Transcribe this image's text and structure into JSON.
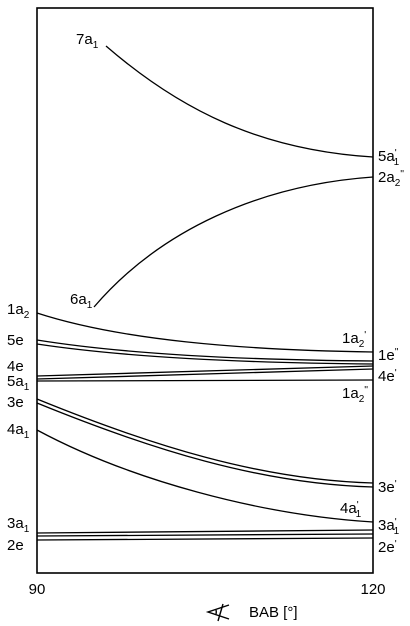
{
  "x_axis": {
    "tick_labels": [
      "90",
      "120"
    ],
    "label": "BAB [°]"
  },
  "left_labels": [
    {
      "id": "7a1",
      "main": "7a",
      "sub": "1",
      "sup": ""
    },
    {
      "id": "6a1",
      "main": "6a",
      "sub": "1",
      "sup": ""
    },
    {
      "id": "1a2",
      "main": "1a",
      "sub": "2",
      "sup": ""
    },
    {
      "id": "5e",
      "main": "5e",
      "sub": "",
      "sup": ""
    },
    {
      "id": "4e",
      "main": "4e",
      "sub": "",
      "sup": ""
    },
    {
      "id": "5a1",
      "main": "5a",
      "sub": "1",
      "sup": ""
    },
    {
      "id": "3e",
      "main": "3e",
      "sub": "",
      "sup": ""
    },
    {
      "id": "4a1",
      "main": "4a",
      "sub": "1",
      "sup": ""
    },
    {
      "id": "3a1",
      "main": "3a",
      "sub": "1",
      "sup": ""
    },
    {
      "id": "2e",
      "main": "2e",
      "sub": "",
      "sup": ""
    }
  ],
  "right_labels": [
    {
      "id": "5a1p",
      "main": "5a",
      "sub": "1",
      "sup": "'"
    },
    {
      "id": "2a2pp",
      "main": "2a",
      "sub": "2",
      "sup": "''"
    },
    {
      "id": "1a2p",
      "main": "1a",
      "sub": "2",
      "sup": "'"
    },
    {
      "id": "1epp",
      "main": "1e",
      "sub": "",
      "sup": "''"
    },
    {
      "id": "4ep",
      "main": "4e",
      "sub": "",
      "sup": "'"
    },
    {
      "id": "1a2pp",
      "main": "1a",
      "sub": "2",
      "sup": "''"
    },
    {
      "id": "3ep",
      "main": "3e",
      "sub": "",
      "sup": "'"
    },
    {
      "id": "4a1p",
      "main": "4a",
      "sub": "1",
      "sup": "'"
    },
    {
      "id": "3a1p",
      "main": "3a",
      "sub": "1",
      "sup": "'"
    },
    {
      "id": "2ep",
      "main": "2e",
      "sub": "",
      "sup": "'"
    }
  ]
}
